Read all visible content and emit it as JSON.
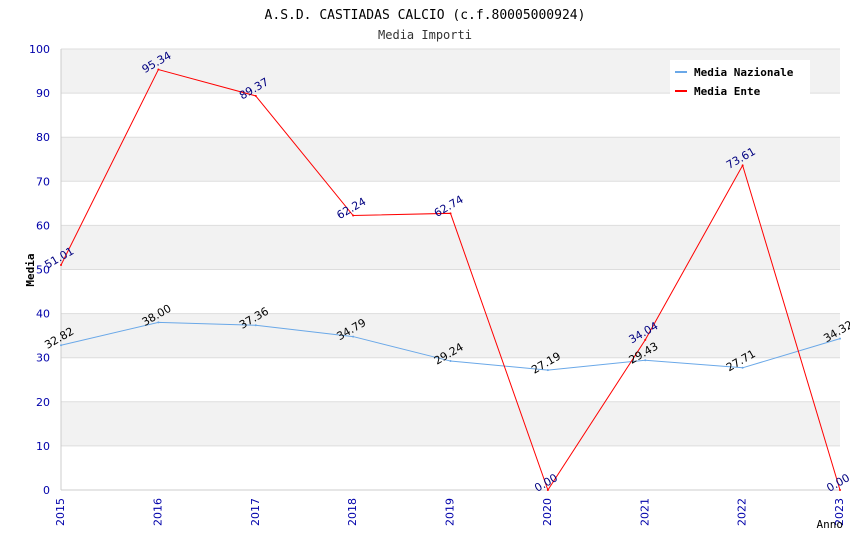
{
  "chart_data": {
    "type": "line",
    "title": "A.S.D. CASTIADAS CALCIO (c.f.80005000924)",
    "subtitle": "Media Importi",
    "xlabel": "Anno",
    "ylabel": "Media",
    "x": [
      "2015",
      "2016",
      "2017",
      "2018",
      "2019",
      "2020",
      "2021",
      "2022",
      "2023"
    ],
    "ylim": [
      0,
      100
    ],
    "yticks": [
      "0",
      "10",
      "20",
      "30",
      "40",
      "50",
      "60",
      "70",
      "80",
      "90",
      "100"
    ],
    "grid": true,
    "legend_position": "top-right",
    "series": [
      {
        "name": "Media Nazionale",
        "color": "#6aa8e8",
        "label_color": "#000000",
        "values": [
          32.82,
          38.0,
          37.36,
          34.79,
          29.24,
          27.19,
          29.43,
          27.71,
          34.32
        ],
        "labels": [
          "32.82",
          "38.00",
          "37.36",
          "34.79",
          "29.24",
          "27.19",
          "29.43",
          "27.71",
          "34.32"
        ]
      },
      {
        "name": "Media Ente",
        "color": "#ff0000",
        "label_color": "#000080",
        "values": [
          51.01,
          95.34,
          89.37,
          62.24,
          62.74,
          0.0,
          34.04,
          73.61,
          0.0
        ],
        "labels": [
          "51.01",
          "95.34",
          "89.37",
          "62.24",
          "62.74",
          "0.00",
          "34.04",
          "73.61",
          "0.00"
        ]
      }
    ]
  }
}
